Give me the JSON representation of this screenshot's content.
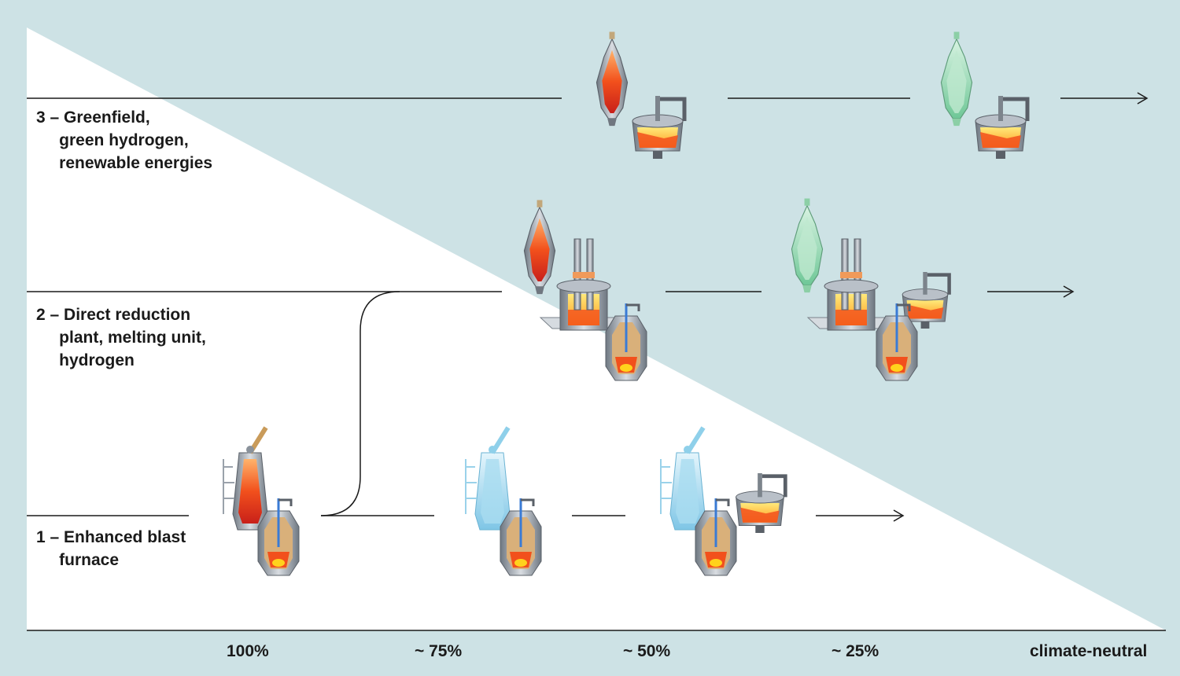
{
  "routes": [
    {
      "label": "3 – Greenfield,\n     green hydrogen,\n     renewable energies"
    },
    {
      "label": "2 – Direct reduction\n     plant, melting unit,\n     hydrogen"
    },
    {
      "label": "1 – Enhanced blast\n     furnace"
    }
  ],
  "axis": {
    "ticks": [
      "100%",
      "~ 75%",
      "~ 50%",
      "~ 25%",
      "climate-neutral"
    ]
  },
  "colors": {
    "background": "#cde2e5",
    "triangle": "#ffffff",
    "line": "#1a1a1a",
    "hot_orange": "#f25a1e",
    "melt_yellow": "#ffd21c",
    "hydrogen_blue": "#9fd6ec",
    "green_hydrogen": "#9fd9b6",
    "steel_grey": "#9aa2ab"
  },
  "icons": [
    "blast-furnace-icon",
    "converter-icon",
    "shaft-furnace-icon",
    "melting-unit-icon",
    "electric-arc-furnace-icon"
  ]
}
